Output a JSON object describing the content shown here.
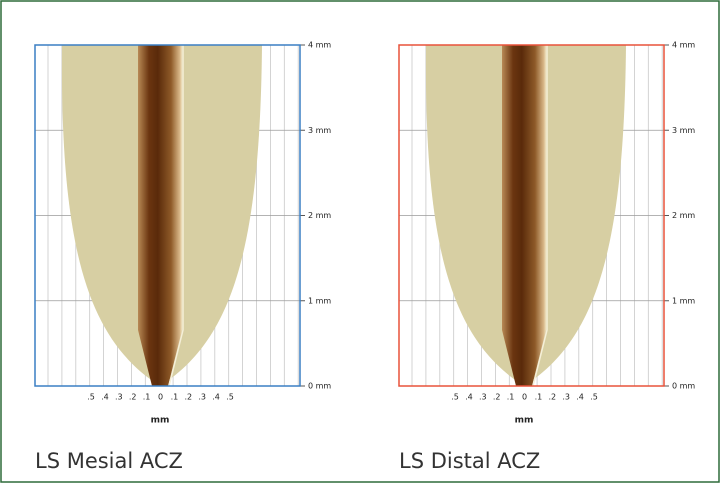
{
  "panels": [
    {
      "title": "LS Mesial ACZ",
      "x_label": "mm",
      "x_ticks": [
        ".5",
        ".4",
        ".3",
        ".2",
        ".1",
        "0",
        ".1",
        ".2",
        ".3",
        ".4",
        ".5"
      ],
      "y_ticks": [
        "4 mm",
        "3 mm",
        "2 mm",
        "1 mm",
        "0 mm"
      ]
    },
    {
      "title": "LS Distal ACZ",
      "x_label": "mm",
      "x_ticks": [
        ".5",
        ".4",
        ".3",
        ".2",
        ".1",
        "0",
        ".1",
        ".2",
        ".3",
        ".4",
        ".5"
      ],
      "y_ticks": [
        "4 mm",
        "3 mm",
        "2 mm",
        "1 mm",
        "0 mm"
      ]
    }
  ]
}
